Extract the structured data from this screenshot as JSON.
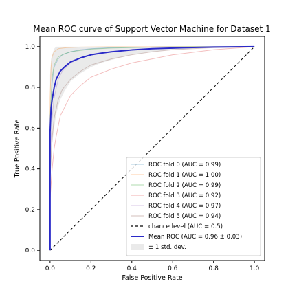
{
  "chart_data": {
    "type": "line",
    "title": "Mean ROC curve of Support Vector Machine for Dataset 1",
    "xlabel": "False Positive Rate",
    "ylabel": "True Positive Rate",
    "xlim": [
      -0.05,
      1.05
    ],
    "ylim": [
      -0.05,
      1.05
    ],
    "xticks": [
      "0.0",
      "0.2",
      "0.4",
      "0.6",
      "0.8",
      "1.0"
    ],
    "yticks": [
      "0.0",
      "0.2",
      "0.4",
      "0.6",
      "0.8",
      "1.0"
    ],
    "grid": false,
    "legend_position": "lower-right",
    "series": [
      {
        "name": "ROC fold 0 (AUC = 0.99)",
        "color": "#1f77b4",
        "opacity": 0.3,
        "style": "solid",
        "x": [
          0,
          0.0,
          0.01,
          0.02,
          0.04,
          0.06,
          0.1,
          0.15,
          0.2,
          0.3,
          0.4,
          0.6,
          0.8,
          1.0
        ],
        "y": [
          0,
          0.6,
          0.82,
          0.9,
          0.94,
          0.96,
          0.975,
          0.985,
          0.99,
          0.995,
          0.997,
          0.999,
          1.0,
          1.0
        ]
      },
      {
        "name": "ROC fold 1 (AUC = 1.00)",
        "color": "#ff7f0e",
        "opacity": 0.3,
        "style": "solid",
        "x": [
          0,
          0.0,
          0.005,
          0.01,
          0.02,
          0.04,
          0.08,
          0.15,
          0.3,
          0.5,
          1.0
        ],
        "y": [
          0,
          0.75,
          0.9,
          0.95,
          0.975,
          0.99,
          0.995,
          0.998,
          1.0,
          1.0,
          1.0
        ]
      },
      {
        "name": "ROC fold 2 (AUC = 0.99)",
        "color": "#2ca02c",
        "opacity": 0.3,
        "style": "solid",
        "x": [
          0,
          0.0,
          0.01,
          0.02,
          0.04,
          0.07,
          0.1,
          0.2,
          0.3,
          0.5,
          0.7,
          1.0
        ],
        "y": [
          0,
          0.65,
          0.85,
          0.91,
          0.95,
          0.965,
          0.975,
          0.988,
          0.993,
          0.998,
          1.0,
          1.0
        ]
      },
      {
        "name": "ROC fold 3 (AUC = 0.92)",
        "color": "#d62728",
        "opacity": 0.3,
        "style": "solid",
        "x": [
          0,
          0.0,
          0.01,
          0.02,
          0.03,
          0.05,
          0.08,
          0.1,
          0.15,
          0.2,
          0.3,
          0.4,
          0.5,
          0.6,
          0.8,
          1.0
        ],
        "y": [
          0,
          0.25,
          0.4,
          0.5,
          0.56,
          0.66,
          0.72,
          0.76,
          0.81,
          0.85,
          0.89,
          0.92,
          0.94,
          0.96,
          0.985,
          1.0
        ]
      },
      {
        "name": "ROC fold 4 (AUC = 0.97)",
        "color": "#9467bd",
        "opacity": 0.3,
        "style": "solid",
        "x": [
          0,
          0.0,
          0.01,
          0.02,
          0.04,
          0.06,
          0.1,
          0.15,
          0.2,
          0.3,
          0.4,
          0.6,
          0.8,
          1.0
        ],
        "y": [
          0,
          0.45,
          0.65,
          0.75,
          0.84,
          0.88,
          0.92,
          0.945,
          0.96,
          0.975,
          0.985,
          0.993,
          0.998,
          1.0
        ]
      },
      {
        "name": "ROC fold 5 (AUC = 0.94)",
        "color": "#8c564b",
        "opacity": 0.3,
        "style": "solid",
        "x": [
          0,
          0.0,
          0.01,
          0.02,
          0.04,
          0.06,
          0.1,
          0.15,
          0.2,
          0.3,
          0.4,
          0.5,
          0.6,
          0.8,
          1.0
        ],
        "y": [
          0,
          0.35,
          0.55,
          0.65,
          0.74,
          0.79,
          0.84,
          0.88,
          0.91,
          0.94,
          0.96,
          0.975,
          0.985,
          0.995,
          1.0
        ]
      },
      {
        "name": "chance level (AUC = 0.5)",
        "color": "#000000",
        "opacity": 1,
        "style": "dashed",
        "x": [
          0,
          1
        ],
        "y": [
          0,
          1
        ]
      },
      {
        "name": "Mean ROC (AUC = 0.96 ± 0.03)",
        "color": "#2a2ac8",
        "opacity": 1,
        "style": "solid",
        "bold": true,
        "x": [
          0,
          0.0,
          0.005,
          0.01,
          0.02,
          0.03,
          0.05,
          0.07,
          0.1,
          0.15,
          0.2,
          0.25,
          0.3,
          0.4,
          0.5,
          0.6,
          0.7,
          0.8,
          0.9,
          1.0
        ],
        "y": [
          0,
          0.58,
          0.7,
          0.74,
          0.8,
          0.84,
          0.88,
          0.9,
          0.925,
          0.945,
          0.96,
          0.968,
          0.975,
          0.984,
          0.99,
          0.993,
          0.996,
          0.998,
          0.999,
          1.0
        ]
      }
    ],
    "band": {
      "name": "± 1 std. dev.",
      "color": "#bbbbbb",
      "opacity": 0.3,
      "x": [
        0.0,
        0.005,
        0.01,
        0.02,
        0.03,
        0.05,
        0.07,
        0.1,
        0.15,
        0.2,
        0.25,
        0.3,
        0.4,
        0.5,
        0.6,
        0.7,
        0.8,
        0.9,
        1.0
      ],
      "lower": [
        0.3,
        0.45,
        0.52,
        0.6,
        0.67,
        0.74,
        0.78,
        0.83,
        0.87,
        0.9,
        0.92,
        0.935,
        0.96,
        0.975,
        0.985,
        0.99,
        0.995,
        0.998,
        1.0
      ],
      "upper": [
        0.86,
        0.94,
        0.96,
        0.99,
        1.0,
        1.0,
        1.0,
        1.0,
        1.0,
        1.0,
        1.0,
        1.0,
        1.0,
        1.0,
        1.0,
        1.0,
        1.0,
        1.0,
        1.0
      ]
    }
  }
}
